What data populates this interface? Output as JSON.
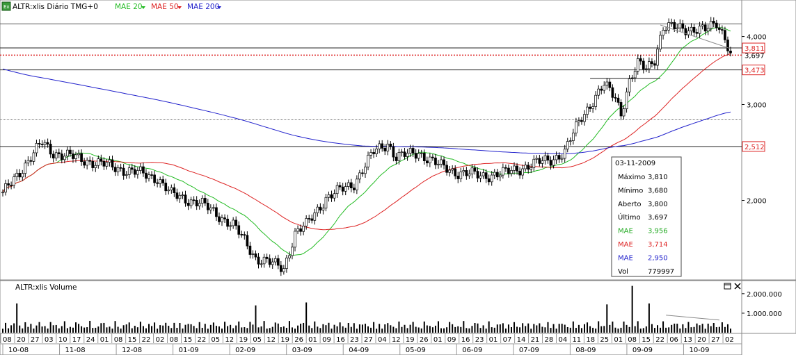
{
  "header": {
    "title": "ALTR:xlis Diário TMG+0",
    "legend": [
      {
        "label": "MAE 20",
        "color": "#22bb22"
      },
      {
        "label": "MAE 50",
        "color": "#dd2222"
      },
      {
        "label": "MAE 200",
        "color": "#2222cc"
      }
    ]
  },
  "volume_panel": {
    "title": "ALTR:xlis Volume",
    "y_ticks": [
      "2.000.000",
      "1.000.000"
    ]
  },
  "info_box": {
    "date": "03-11-2009",
    "rows": [
      {
        "label": "Máximo",
        "value": "3,810",
        "color": "#000000"
      },
      {
        "label": "Mínimo",
        "value": "3,680",
        "color": "#000000"
      },
      {
        "label": "Aberto",
        "value": "3,800",
        "color": "#000000"
      },
      {
        "label": "Último",
        "value": "3,697",
        "color": "#000000"
      },
      {
        "label": "MAE",
        "value": "3,956",
        "color": "#22aa22"
      },
      {
        "label": "MAE",
        "value": "3,714",
        "color": "#dd2222"
      },
      {
        "label": "MAE",
        "value": "2,950",
        "color": "#2222cc"
      },
      {
        "label": "Vol",
        "value": "779997",
        "color": "#000000"
      }
    ]
  },
  "chart_data": {
    "type": "candlestick",
    "y_scale": "log",
    "ylim": [
      1.45,
      4.6
    ],
    "y_ticks": [
      "4,000",
      "3,000",
      "2,000"
    ],
    "price_labels": [
      {
        "text": "3,811",
        "color": "#dd2222",
        "boxed": true
      },
      {
        "text": "3,697",
        "color": "#000000",
        "boxed": false
      },
      {
        "text": "3,473",
        "color": "#dd2222",
        "boxed": true
      },
      {
        "text": "2,512",
        "color": "#dd2222",
        "boxed": true
      }
    ],
    "horizontal_levels": [
      {
        "value": 4.22,
        "style": "solid-thin"
      },
      {
        "value": 3.811,
        "style": "solid"
      },
      {
        "value": 3.697,
        "style": "dotted-red"
      },
      {
        "value": 3.473,
        "style": "solid"
      },
      {
        "value": 2.812,
        "style": "dotted"
      },
      {
        "value": 2.512,
        "style": "solid"
      }
    ],
    "x_day_labels": [
      "08",
      "20",
      "27",
      "03",
      "10",
      "17",
      "24",
      "01",
      "08",
      "15",
      "22",
      "02",
      "08",
      "15",
      "22",
      "05",
      "12",
      "19",
      "05",
      "12",
      "19",
      "26",
      "01",
      "09",
      "16",
      "23",
      "27",
      "04",
      "12",
      "19",
      "26",
      "01",
      "09",
      "16",
      "23",
      "01",
      "07",
      "14",
      "21",
      "28",
      "04",
      "11",
      "18",
      "25",
      "01",
      "08",
      "15",
      "22",
      "06",
      "13",
      "20",
      "27",
      "02"
    ],
    "x_month_labels": [
      "10-08",
      "11-08",
      "12-08",
      "01-09",
      "02-09",
      "03-09",
      "04-09",
      "05-09",
      "06-09",
      "07-09",
      "08-09",
      "09-09",
      "10-09"
    ],
    "close_anchors": [
      [
        0,
        2.05
      ],
      [
        10,
        2.4
      ],
      [
        14,
        2.55
      ],
      [
        18,
        2.45
      ],
      [
        25,
        2.4
      ],
      [
        40,
        2.3
      ],
      [
        55,
        2.2
      ],
      [
        60,
        2.05
      ],
      [
        70,
        1.98
      ],
      [
        82,
        1.8
      ],
      [
        90,
        1.57
      ],
      [
        100,
        1.5
      ],
      [
        104,
        1.74
      ],
      [
        108,
        1.8
      ],
      [
        115,
        2.02
      ],
      [
        125,
        2.15
      ],
      [
        132,
        2.45
      ],
      [
        137,
        2.55
      ],
      [
        140,
        2.4
      ],
      [
        148,
        2.45
      ],
      [
        155,
        2.32
      ],
      [
        162,
        2.25
      ],
      [
        170,
        2.22
      ],
      [
        178,
        2.24
      ],
      [
        185,
        2.3
      ],
      [
        195,
        2.38
      ],
      [
        200,
        2.45
      ],
      [
        206,
        2.85
      ],
      [
        210,
        3.05
      ],
      [
        214,
        3.25
      ],
      [
        218,
        3.1
      ],
      [
        220,
        2.9
      ],
      [
        223,
        3.3
      ],
      [
        226,
        3.55
      ],
      [
        229,
        3.5
      ],
      [
        232,
        3.65
      ],
      [
        235,
        4.15
      ],
      [
        242,
        4.15
      ],
      [
        250,
        4.1
      ],
      [
        254,
        4.25
      ],
      [
        257,
        4.0
      ],
      [
        259,
        3.7
      ]
    ],
    "sma200_start": 3.5,
    "volume_baseline": 450000,
    "volume_peaks": [
      {
        "day": 5,
        "value": 1500000
      },
      {
        "day": 90,
        "value": 1400000
      },
      {
        "day": 108,
        "value": 1550000
      },
      {
        "day": 215,
        "value": 1450000
      },
      {
        "day": 224,
        "value": 2400000
      },
      {
        "day": 230,
        "value": 1500000
      }
    ]
  }
}
